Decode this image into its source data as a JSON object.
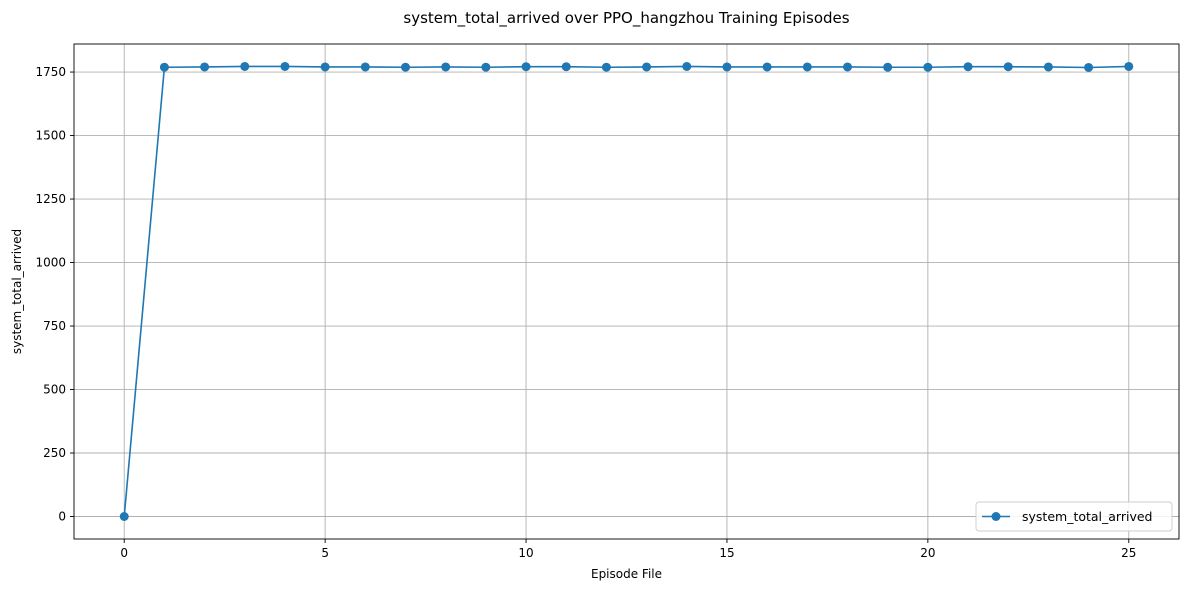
{
  "chart_data": {
    "type": "line",
    "title": "system_total_arrived over PPO_hangzhou Training Episodes",
    "xlabel": "Episode File",
    "ylabel": "system_total_arrived",
    "xlim": [
      -1.25,
      26.25
    ],
    "ylim": [
      -88.6,
      1860.5
    ],
    "xticks": [
      0,
      5,
      10,
      15,
      20,
      25
    ],
    "yticks": [
      0,
      250,
      500,
      750,
      1000,
      1250,
      1500,
      1750
    ],
    "grid": true,
    "legend_position": "lower-right",
    "x": [
      0,
      1,
      2,
      3,
      4,
      5,
      6,
      7,
      8,
      9,
      10,
      11,
      12,
      13,
      14,
      15,
      16,
      17,
      18,
      19,
      20,
      21,
      22,
      23,
      24,
      25
    ],
    "series": [
      {
        "name": "system_total_arrived",
        "color": "#1f77b4",
        "marker": "circle",
        "values": [
          0,
          1769,
          1770,
          1772,
          1772,
          1770,
          1770,
          1769,
          1770,
          1769,
          1771,
          1771,
          1769,
          1770,
          1772,
          1770,
          1770,
          1770,
          1770,
          1769,
          1769,
          1771,
          1771,
          1770,
          1768,
          1772
        ]
      }
    ]
  }
}
